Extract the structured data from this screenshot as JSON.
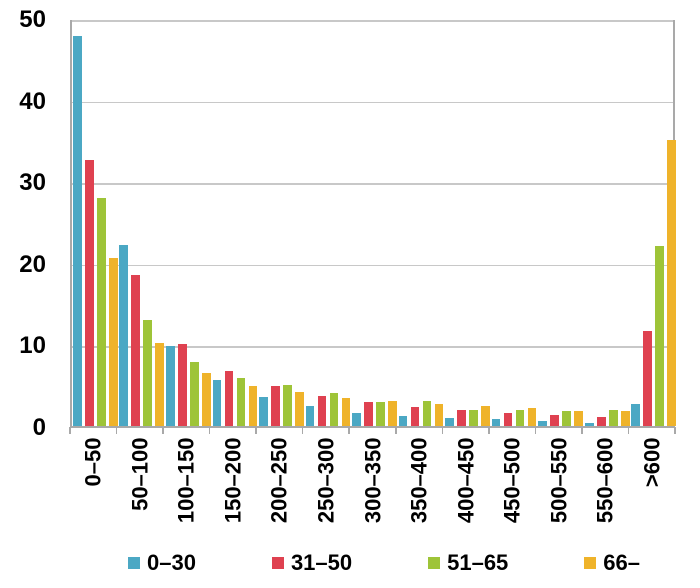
{
  "chart_data": {
    "type": "bar",
    "title": "",
    "xlabel": "",
    "ylabel": "",
    "categories": [
      "0–50",
      "50–100",
      "100–150",
      "150–200",
      "200–250",
      "250–300",
      "300–350",
      "350–400",
      "400–450",
      "450–500",
      "500–550",
      "550–600",
      ">600"
    ],
    "series": [
      {
        "name": "0–30",
        "color": "#4BA8C4",
        "values": [
          47.8,
          22.2,
          9.8,
          5.7,
          3.5,
          2.4,
          1.6,
          1.2,
          1.0,
          0.8,
          0.6,
          0.4,
          2.7
        ]
      },
      {
        "name": "31–50",
        "color": "#DF4150",
        "values": [
          32.6,
          18.5,
          10.0,
          6.8,
          4.9,
          3.7,
          3.0,
          2.3,
          2.0,
          1.6,
          1.3,
          1.1,
          11.6
        ]
      },
      {
        "name": "51–65",
        "color": "#9EC438",
        "values": [
          27.9,
          13.0,
          7.9,
          5.9,
          5.0,
          4.0,
          3.0,
          3.1,
          2.0,
          2.0,
          1.9,
          2.0,
          22.0
        ]
      },
      {
        "name": "66–",
        "color": "#EFB32A",
        "values": [
          20.6,
          10.2,
          6.5,
          4.9,
          4.2,
          3.4,
          3.1,
          2.7,
          2.4,
          2.2,
          1.9,
          1.8,
          35.0
        ]
      }
    ],
    "ylim": [
      0,
      50
    ],
    "yticks": [
      0,
      10,
      20,
      30,
      40,
      50
    ],
    "grid": "horizontal",
    "legend_position": "bottom"
  },
  "colors": {
    "background": "#FFFFFF",
    "axis": "#A9A9A9",
    "gridline": "#C8C8C8",
    "text": "#000000"
  }
}
